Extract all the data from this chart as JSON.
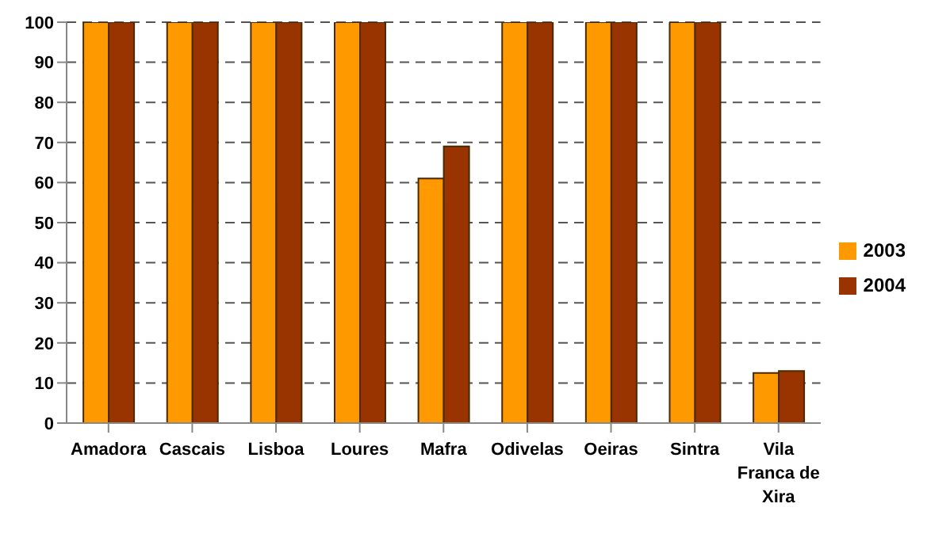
{
  "chart_data": {
    "type": "bar",
    "categories": [
      "Amadora",
      "Cascais",
      "Lisboa",
      "Loures",
      "Mafra",
      "Odivelas",
      "Oeiras",
      "Sintra",
      "Vila Franca de Xira"
    ],
    "series": [
      {
        "name": "2003",
        "color": "#ff9900",
        "values": [
          100,
          100,
          100,
          100,
          61,
          100,
          100,
          100,
          12.5
        ]
      },
      {
        "name": "2004",
        "color": "#993300",
        "values": [
          100,
          100,
          100,
          100,
          69,
          100,
          100,
          100,
          13
        ]
      }
    ],
    "ylim": [
      0,
      100
    ],
    "yticks": [
      0,
      10,
      20,
      30,
      40,
      50,
      60,
      70,
      80,
      90,
      100
    ],
    "grid": "y",
    "legend": "right"
  }
}
